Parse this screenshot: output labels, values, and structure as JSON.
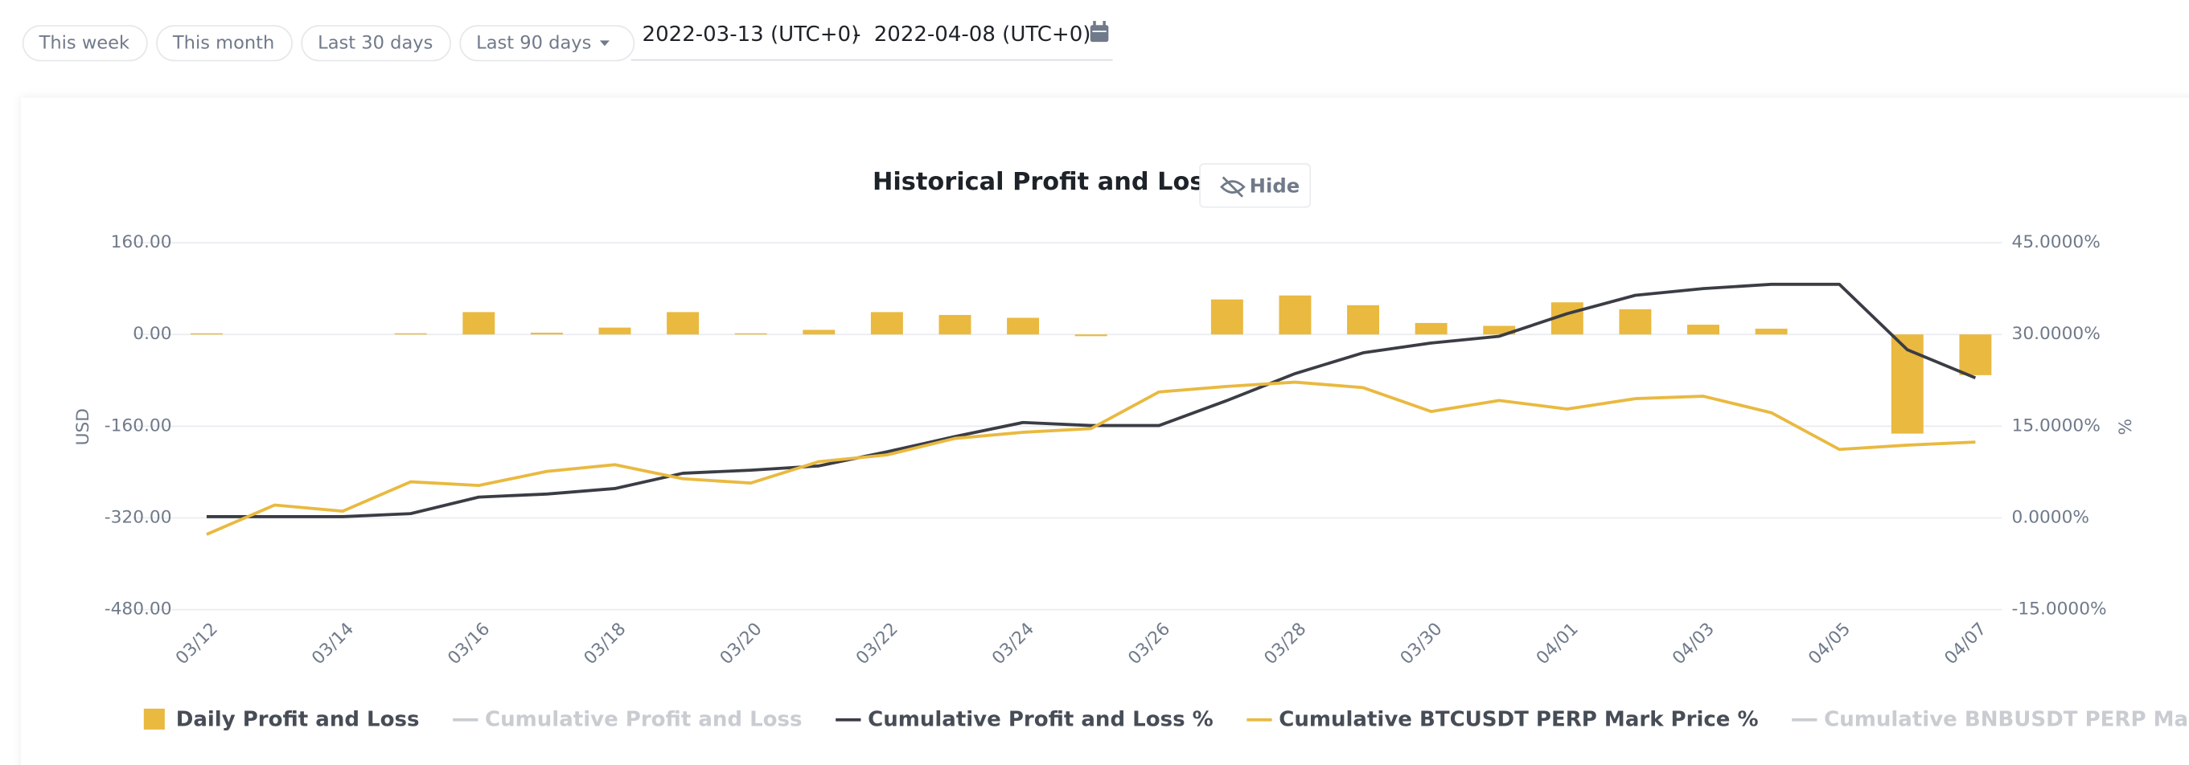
{
  "filters": [
    "This week",
    "This month",
    "Last 30 days",
    "Last 90 days"
  ],
  "date_range": {
    "start": "2022-03-13 (UTC+0)",
    "separator": "-",
    "end": "2022-04-08 (UTC+0)"
  },
  "hide_button": "Hide",
  "chart_data": {
    "type": "bar",
    "title": "Historical Profit and Loss",
    "y_label": "USD",
    "y2_label": "%",
    "categories": [
      "03/12",
      null,
      "03/14",
      null,
      "03/16",
      null,
      "03/18",
      null,
      "03/20",
      null,
      "03/22",
      null,
      "03/24",
      null,
      "03/26",
      null,
      "03/28",
      null,
      "03/30",
      null,
      "04/01",
      null,
      "04/03",
      null,
      "04/05",
      null,
      "04/07"
    ],
    "ylim": [
      -480,
      160
    ],
    "yticks": [
      {
        "value": 160,
        "label": "160.00"
      },
      {
        "value": 0,
        "label": "0.00"
      },
      {
        "value": -160,
        "label": "-160.00"
      },
      {
        "value": -320,
        "label": "-320.00"
      },
      {
        "value": -480,
        "label": "-480.00"
      }
    ],
    "y2lim": [
      -15,
      45
    ],
    "y2ticks": [
      {
        "value": 45,
        "label": "45.0000%"
      },
      {
        "value": 30,
        "label": "30.0000%"
      },
      {
        "value": 15,
        "label": "15.0000%"
      },
      {
        "value": 0,
        "label": "0.0000%"
      },
      {
        "value": -15,
        "label": "-15.0000%"
      }
    ],
    "grid": true,
    "legend": "bottom",
    "series": [
      {
        "name": "Daily Profit and Loss",
        "type": "bar",
        "color": "#e9b940",
        "visible": true,
        "values": [
          2,
          0,
          0,
          2,
          39,
          3,
          12,
          39,
          2,
          8,
          39,
          34,
          29,
          -3,
          0,
          61,
          68,
          51,
          20,
          15,
          56,
          44,
          17,
          10,
          0,
          -173,
          -71
        ]
      },
      {
        "name": "Cumulative Profit and Loss",
        "type": "line",
        "color": "#c9ccd1",
        "visible": false
      },
      {
        "name": "Cumulative Profit and Loss %",
        "type": "line",
        "axis": "y2",
        "color": "#3b3d45",
        "visible": true,
        "values": [
          0.2,
          0.2,
          0.2,
          0.7,
          3.4,
          3.9,
          4.8,
          7.3,
          7.8,
          8.5,
          10.8,
          13.3,
          15.6,
          15.1,
          15.1,
          19.2,
          23.6,
          27.0,
          28.6,
          29.7,
          33.4,
          36.4,
          37.5,
          38.2,
          38.2,
          27.5,
          22.9
        ]
      },
      {
        "name": "Cumulative BTCUSDT PERP Mark Price %",
        "type": "line",
        "axis": "y2",
        "color": "#e9b940",
        "visible": true,
        "values": [
          -2.7,
          2.1,
          1.1,
          5.9,
          5.3,
          7.6,
          8.7,
          6.4,
          5.7,
          9.2,
          10.3,
          13.0,
          14.0,
          14.6,
          20.6,
          21.5,
          22.2,
          21.3,
          17.4,
          19.2,
          17.8,
          19.5,
          19.9,
          17.2,
          11.2,
          11.9,
          12.4
        ]
      },
      {
        "name": "Cumulative BNBUSDT PERP Mark Price %",
        "type": "line",
        "axis": "y2",
        "color": "#c9ccd1",
        "visible": false
      }
    ]
  }
}
